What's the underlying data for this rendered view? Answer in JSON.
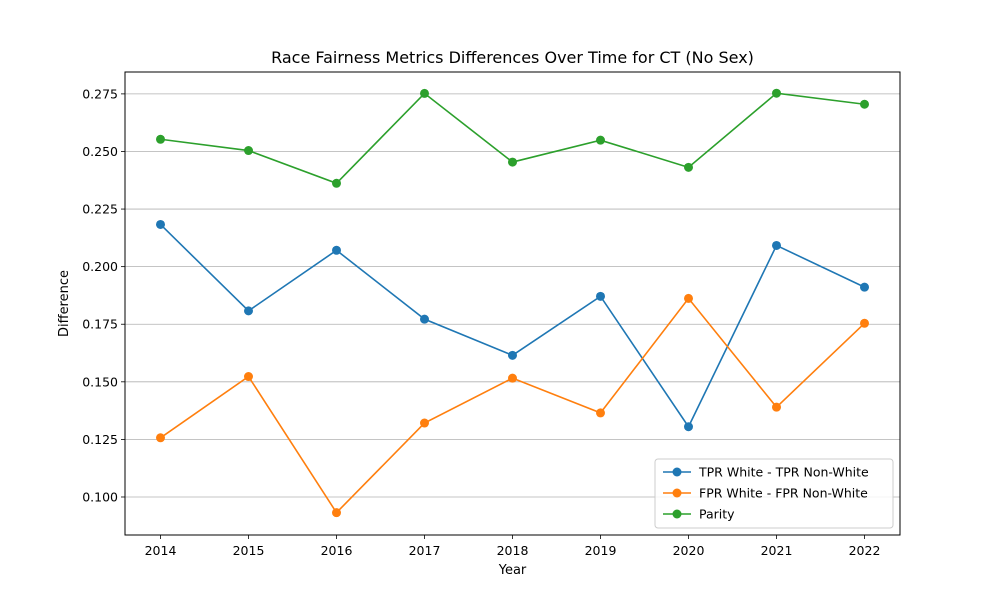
{
  "chart_data": {
    "type": "line",
    "title": "Race Fairness Metrics Differences Over Time for CT (No Sex)",
    "xlabel": "Year",
    "ylabel": "Difference",
    "x": [
      "2014",
      "2015",
      "2016",
      "2017",
      "2018",
      "2019",
      "2020",
      "2021",
      "2022"
    ],
    "ylim": [
      0.0835,
      0.2845
    ],
    "yticks": [
      "0.100",
      "0.125",
      "0.150",
      "0.175",
      "0.200",
      "0.225",
      "0.250",
      "0.275"
    ],
    "grid": "horizontal",
    "legend_position": "lower-right",
    "series": [
      {
        "name": "TPR White - TPR Non-White",
        "color": "#1f77b4",
        "values": [
          0.2183,
          0.1808,
          0.2071,
          0.1772,
          0.1615,
          0.1871,
          0.1305,
          0.2092,
          0.1911
        ]
      },
      {
        "name": "FPR White - FPR Non-White",
        "color": "#ff7f0e",
        "values": [
          0.1257,
          0.1523,
          0.0932,
          0.1321,
          0.1516,
          0.1365,
          0.1862,
          0.139,
          0.1754
        ]
      },
      {
        "name": "Parity",
        "color": "#2ca02c",
        "values": [
          0.2553,
          0.2504,
          0.2362,
          0.2752,
          0.2454,
          0.2549,
          0.2431,
          0.2753,
          0.2705
        ]
      }
    ]
  }
}
